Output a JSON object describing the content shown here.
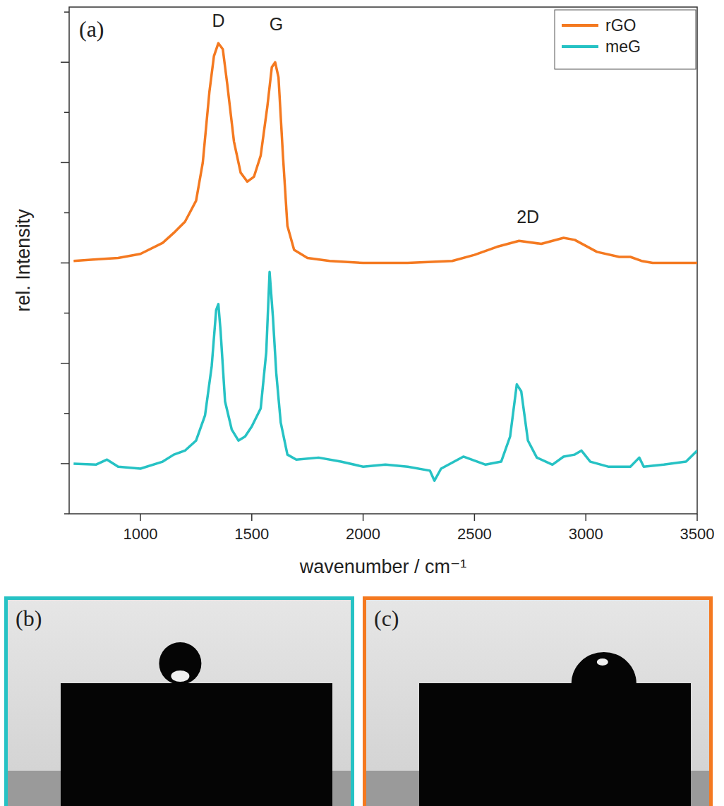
{
  "chart_data": {
    "type": "line",
    "panel_label": "(a)",
    "x_label": "wavenumber / cm⁻¹",
    "y_label": "rel. Intensity",
    "xlim": [
      680,
      3500
    ],
    "xticks": [
      1000,
      1500,
      2000,
      2500,
      3000,
      3500
    ],
    "ylim": [
      -0.5,
      4.55
    ],
    "yticks": [
      -0.5,
      0,
      0.5,
      1,
      1.5,
      2,
      2.5,
      3,
      3.5,
      4,
      4.5
    ],
    "tick_labels": "x",
    "legend": "top-right",
    "annotations": [
      {
        "text": "D",
        "x": 1350,
        "y": 4.35
      },
      {
        "text": "G",
        "x": 1610,
        "y": 4.32
      },
      {
        "text": "2D",
        "x": 2740,
        "y": 2.4
      }
    ],
    "series": [
      {
        "name": "rGO",
        "color": "#f47920",
        "x": [
          700,
          800,
          900,
          1000,
          1100,
          1150,
          1200,
          1250,
          1280,
          1310,
          1330,
          1350,
          1370,
          1390,
          1420,
          1450,
          1480,
          1510,
          1540,
          1570,
          1590,
          1605,
          1620,
          1640,
          1660,
          1690,
          1750,
          1850,
          2000,
          2200,
          2400,
          2500,
          2600,
          2700,
          2800,
          2900,
          2950,
          3050,
          3150,
          3200,
          3250,
          3300,
          3500
        ],
        "values": [
          2.02,
          2.035,
          2.05,
          2.09,
          2.2,
          2.3,
          2.41,
          2.62,
          3.0,
          3.71,
          4.06,
          4.19,
          4.13,
          3.78,
          3.21,
          2.9,
          2.81,
          2.86,
          3.07,
          3.56,
          3.95,
          4.0,
          3.85,
          3.07,
          2.37,
          2.13,
          2.05,
          2.02,
          2.0,
          2.0,
          2.02,
          2.08,
          2.16,
          2.22,
          2.19,
          2.25,
          2.23,
          2.11,
          2.06,
          2.06,
          2.02,
          2.0,
          2.0
        ]
      },
      {
        "name": "meG",
        "color": "#26c2c4",
        "x": [
          700,
          800,
          850,
          900,
          1000,
          1100,
          1150,
          1200,
          1250,
          1290,
          1320,
          1340,
          1350,
          1360,
          1380,
          1410,
          1440,
          1470,
          1500,
          1540,
          1565,
          1580,
          1595,
          1610,
          1630,
          1660,
          1700,
          1800,
          1900,
          2000,
          2100,
          2200,
          2300,
          2320,
          2350,
          2450,
          2550,
          2620,
          2660,
          2690,
          2710,
          2740,
          2780,
          2850,
          2900,
          2950,
          2980,
          3020,
          3100,
          3200,
          3240,
          3260,
          3350,
          3450,
          3500
        ],
        "values": [
          0,
          -0.01,
          0.04,
          -0.03,
          -0.05,
          0.02,
          0.09,
          0.13,
          0.23,
          0.48,
          0.97,
          1.53,
          1.59,
          1.32,
          0.62,
          0.34,
          0.23,
          0.27,
          0.37,
          0.55,
          1.11,
          1.91,
          1.46,
          0.9,
          0.41,
          0.09,
          0.04,
          0.06,
          0.02,
          -0.03,
          -0.01,
          -0.03,
          -0.07,
          -0.17,
          -0.05,
          0.07,
          -0.01,
          0.02,
          0.27,
          0.79,
          0.72,
          0.23,
          0.06,
          -0.01,
          0.07,
          0.09,
          0.13,
          0.02,
          -0.03,
          -0.03,
          0.06,
          -0.03,
          -0.01,
          0.02,
          0.13
        ]
      }
    ]
  },
  "images": [
    {
      "label": "(b)",
      "color": "#26c2c4"
    },
    {
      "label": "(c)",
      "color": "#f47920"
    }
  ]
}
